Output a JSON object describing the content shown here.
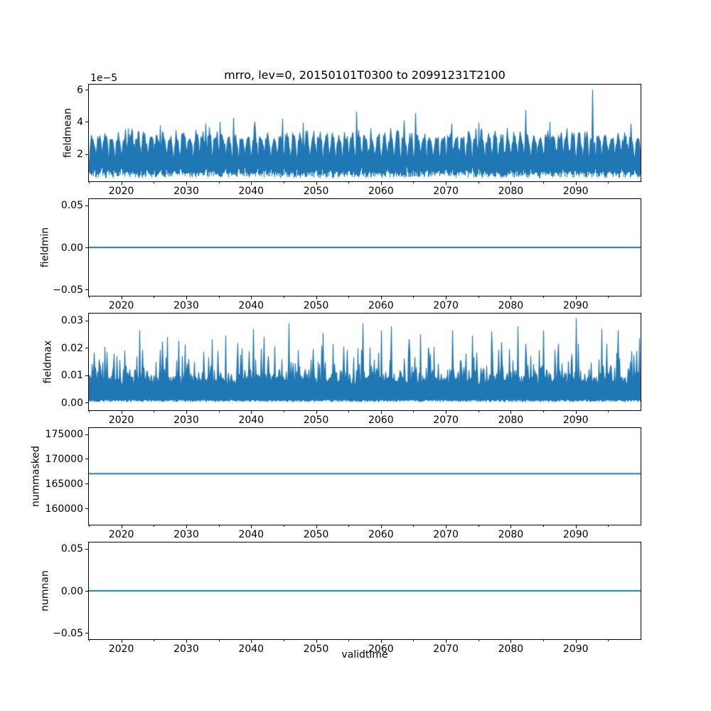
{
  "figure": {
    "title": "mrro, lev=0, 20150101T0300 to 20991231T2100",
    "xlabel": "validtime",
    "line_color": "#1f77b4",
    "spine_color": "#000000",
    "text_color": "#000000",
    "background": "#ffffff",
    "x_axis": {
      "lim": [
        2015,
        2100
      ],
      "major_ticks": [
        2020,
        2030,
        2040,
        2050,
        2060,
        2070,
        2080,
        2090
      ],
      "major_labels": [
        "2020",
        "2030",
        "2040",
        "2050",
        "2060",
        "2070",
        "2080",
        "2090"
      ],
      "minor_ticks": [
        2015,
        2025,
        2035,
        2045,
        2055,
        2065,
        2075,
        2085,
        2095
      ]
    }
  },
  "chart_data": [
    {
      "name": "fieldmean",
      "type": "line",
      "subtype": "noisy-band",
      "ylabel": "fieldmean",
      "offset_text": "1e−5",
      "unit_scale": 1e-05,
      "ylim": [
        0.3,
        6.32
      ],
      "yticks": {
        "values": [
          2,
          4,
          6
        ],
        "labels": [
          "2",
          "4",
          "6"
        ]
      },
      "summary": {
        "description": "dense noisy series with annual cycle, values in units of 1e-5",
        "typical_low": 0.6,
        "typical_high": 3.5,
        "mean_level": 2.0
      },
      "spikes": [
        [
          2021.0,
          3.6
        ],
        [
          2026.0,
          3.8
        ],
        [
          2033.0,
          3.9
        ],
        [
          2035.2,
          4.0
        ],
        [
          2037.2,
          4.25
        ],
        [
          2040.5,
          4.0
        ],
        [
          2044.8,
          4.2
        ],
        [
          2048.0,
          3.95
        ],
        [
          2056.2,
          4.65
        ],
        [
          2063.5,
          4.1
        ],
        [
          2065.3,
          4.55
        ],
        [
          2070.9,
          3.9
        ],
        [
          2075.0,
          3.95
        ],
        [
          2082.3,
          4.75
        ],
        [
          2086.0,
          4.0
        ],
        [
          2092.5,
          6.0
        ],
        [
          2098.5,
          3.9
        ]
      ],
      "seed": 7,
      "synth": {
        "base": 1.35,
        "seasonal_amp": 1.55,
        "seasonal_pow": 0.8,
        "noise_amp": 0.8,
        "bottom_base": 0.5,
        "bottom_noise": 0.35,
        "bottom_season": 0.35
      }
    },
    {
      "name": "fieldmin",
      "type": "line",
      "subtype": "constant",
      "ylabel": "fieldmin",
      "value": 0.0,
      "ylim": [
        -0.0572,
        0.0572
      ],
      "yticks": {
        "values": [
          0.05,
          0.0,
          -0.05
        ],
        "labels": [
          "0.05",
          "0.00",
          "−0.05"
        ]
      }
    },
    {
      "name": "fieldmax",
      "type": "line",
      "subtype": "noisy-band",
      "ylabel": "fieldmax",
      "unit_scale": 1,
      "ylim": [
        -0.0028,
        0.0326
      ],
      "yticks": {
        "values": [
          0.0,
          0.01,
          0.02,
          0.03
        ],
        "labels": [
          "0.00",
          "0.01",
          "0.02",
          "0.03"
        ]
      },
      "summary": {
        "description": "dense noisy series, solid band near 0.001-0.008 with spikes to 0.02-0.031",
        "typical_low": 0.0005,
        "typical_high": 0.02,
        "mean_level": 0.006
      },
      "spikes": [
        [
          2022.8,
          0.0265
        ],
        [
          2027.0,
          0.024
        ],
        [
          2036.0,
          0.0245
        ],
        [
          2040.3,
          0.027
        ],
        [
          2042.0,
          0.024
        ],
        [
          2045.8,
          0.029
        ],
        [
          2051.0,
          0.0255
        ],
        [
          2057.2,
          0.029
        ],
        [
          2060.0,
          0.0265
        ],
        [
          2061.5,
          0.028
        ],
        [
          2066.0,
          0.025
        ],
        [
          2071.0,
          0.0265
        ],
        [
          2074.0,
          0.0245
        ],
        [
          2077.0,
          0.026
        ],
        [
          2081.0,
          0.028
        ],
        [
          2085.0,
          0.0265
        ],
        [
          2090.0,
          0.031
        ],
        [
          2094.0,
          0.027
        ],
        [
          2096.5,
          0.0265
        ]
      ],
      "seed": 13,
      "synth": {
        "bottom_base": 0.0002,
        "bottom_noise": 0.0008,
        "solid_top_base": 0.0065,
        "solid_top_noise": 0.003,
        "spike_prob": 0.45,
        "spike_base": 0.0025,
        "spike_amp": 0.012
      }
    },
    {
      "name": "nummasked",
      "type": "line",
      "subtype": "constant",
      "ylabel": "nummasked",
      "value": 167000,
      "ylim": [
        156700,
        176240
      ],
      "yticks": {
        "values": [
          160000,
          165000,
          170000,
          175000
        ],
        "labels": [
          "160000",
          "165000",
          "170000",
          "175000"
        ]
      }
    },
    {
      "name": "numnan",
      "type": "line",
      "subtype": "constant",
      "ylabel": "numnan",
      "value": 0.0,
      "ylim": [
        -0.0572,
        0.0572
      ],
      "yticks": {
        "values": [
          0.05,
          0.0,
          -0.05
        ],
        "labels": [
          "0.05",
          "0.00",
          "−0.05"
        ]
      }
    }
  ]
}
